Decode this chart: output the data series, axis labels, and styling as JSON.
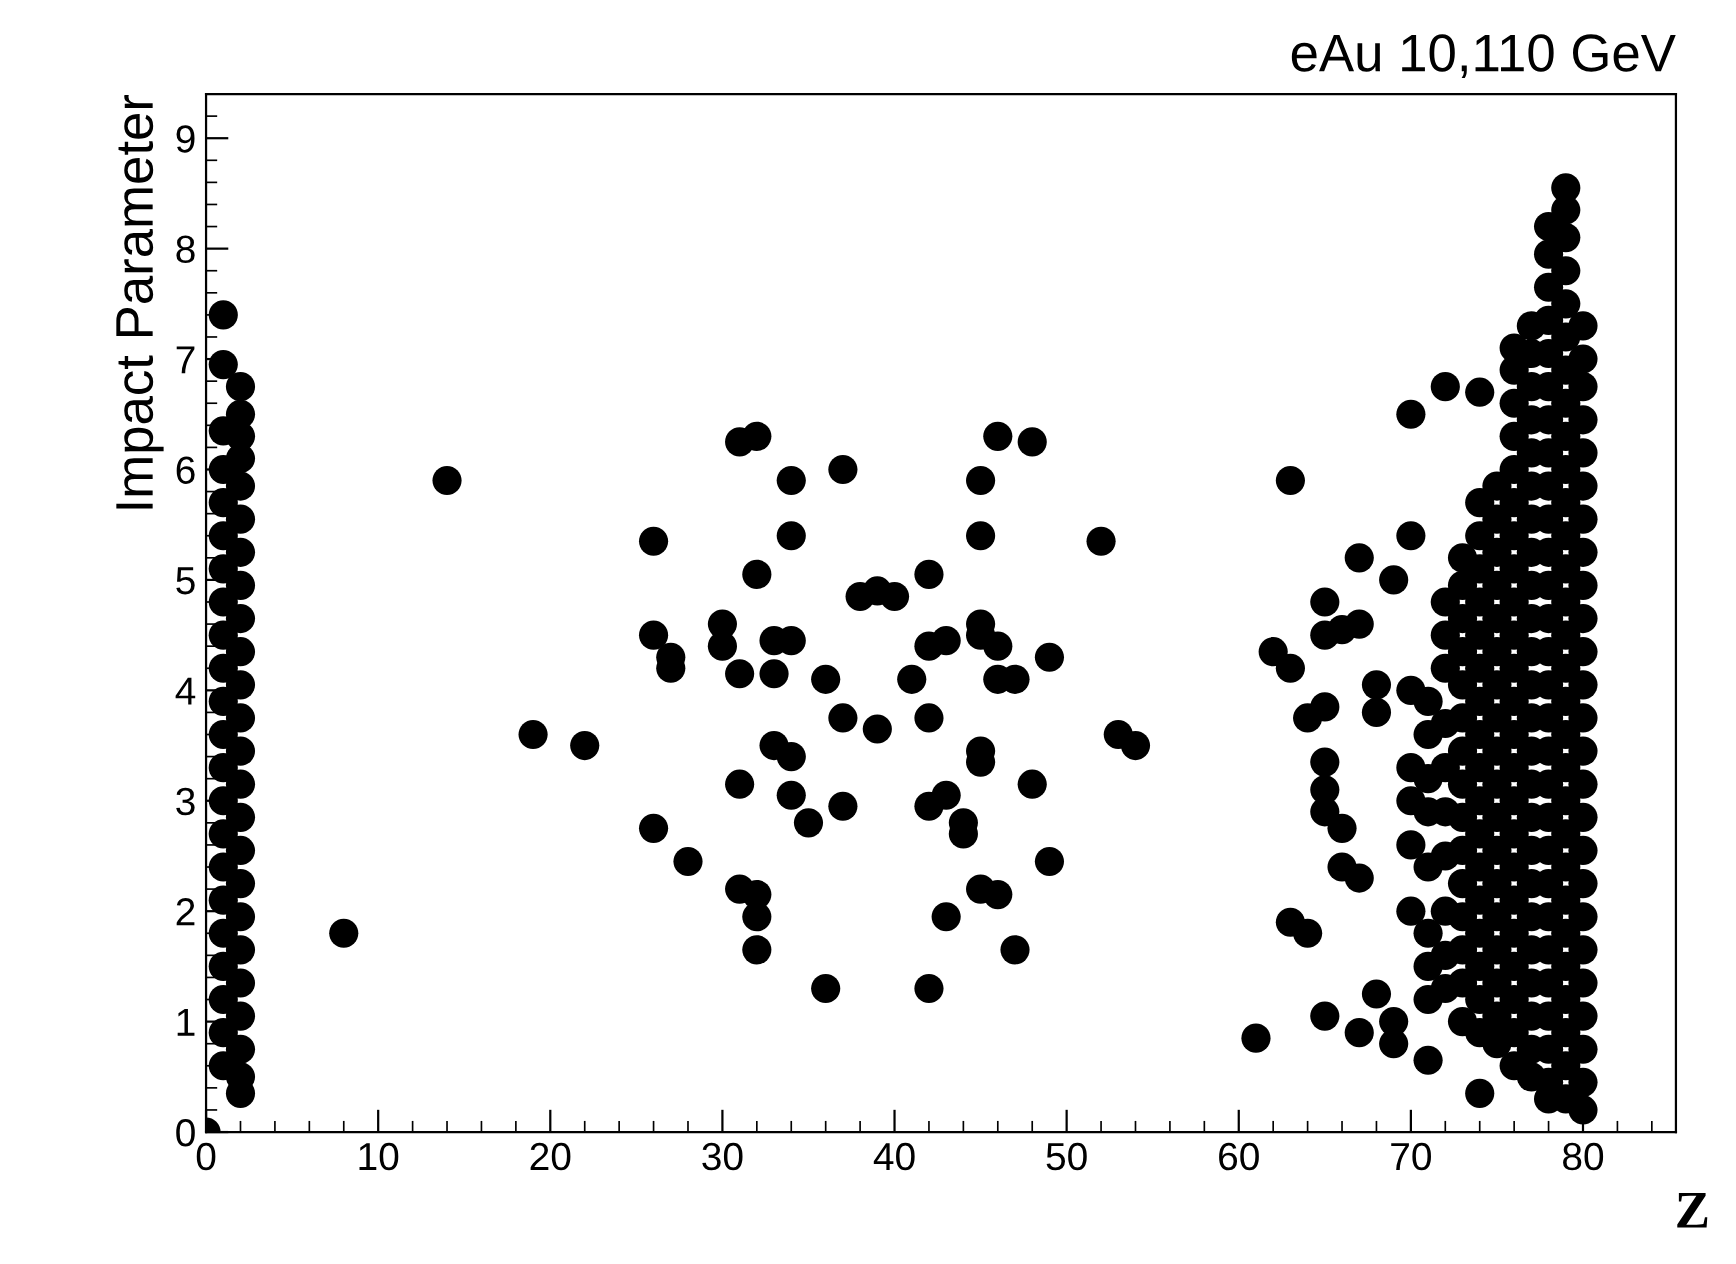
{
  "chart_data": {
    "type": "scatter",
    "title": "eAu 10,110 GeV",
    "xlabel": "Z",
    "ylabel": "Impact Parameter",
    "xlim": [
      0,
      85.4
    ],
    "ylim": [
      0,
      9.4
    ],
    "xticks": [
      0,
      10,
      20,
      30,
      40,
      50,
      60,
      70,
      80
    ],
    "yticks": [
      0,
      1,
      2,
      3,
      4,
      5,
      6,
      7,
      8,
      9
    ],
    "grid": false,
    "marker": "circle",
    "legend": false,
    "series": [
      {
        "color": "#000000",
        "x": [
          0
        ],
        "values": [
          0
        ]
      },
      {
        "color": "#000000",
        "x": [
          1,
          1,
          1,
          1,
          1,
          1,
          1,
          1,
          1,
          1,
          1,
          1,
          1,
          1,
          1,
          1,
          1,
          1,
          1,
          1,
          1,
          1
        ],
        "values": [
          0.6,
          0.9,
          1.2,
          1.5,
          1.8,
          2.1,
          2.4,
          2.7,
          3.0,
          3.3,
          3.6,
          3.9,
          4.2,
          4.5,
          4.8,
          5.1,
          5.4,
          5.7,
          6.0,
          6.35,
          6.95,
          7.4
        ]
      },
      {
        "color": "#000000",
        "x": [
          2,
          2,
          2,
          2,
          2,
          2,
          2,
          2,
          2,
          2,
          2,
          2,
          2,
          2,
          2,
          2,
          2,
          2,
          2,
          2,
          2,
          2,
          2,
          2
        ],
        "values": [
          0.35,
          0.5,
          0.75,
          1.05,
          1.35,
          1.65,
          1.95,
          2.25,
          2.55,
          2.85,
          3.15,
          3.45,
          3.75,
          4.05,
          4.35,
          4.65,
          4.95,
          5.25,
          5.55,
          5.85,
          6.1,
          6.3,
          6.5,
          6.75
        ]
      },
      {
        "color": "#000000",
        "x": [
          8,
          14,
          19,
          22,
          26,
          26,
          27,
          27,
          26,
          28,
          30,
          30,
          31,
          31,
          31,
          31,
          32,
          32,
          32,
          32,
          32,
          33,
          33,
          33,
          34,
          34,
          34,
          34,
          34,
          35,
          36,
          36,
          37,
          37,
          37,
          38,
          39,
          40,
          39,
          41,
          42,
          42,
          42,
          42,
          42,
          43,
          43,
          43,
          44,
          44,
          45,
          45,
          45,
          45,
          45,
          45,
          45,
          46,
          46,
          46,
          46,
          47,
          47,
          48,
          48,
          49,
          49,
          52,
          53,
          54
        ],
        "values": [
          1.8,
          5.9,
          3.6,
          3.5,
          5.35,
          4.5,
          4.3,
          4.2,
          2.75,
          2.45,
          4.6,
          4.4,
          4.15,
          3.15,
          2.2,
          6.25,
          6.3,
          5.05,
          2.15,
          1.95,
          1.65,
          4.45,
          4.15,
          3.5,
          4.45,
          5.9,
          5.4,
          3.4,
          3.05,
          2.8,
          4.1,
          1.3,
          6.0,
          3.75,
          2.95,
          4.85,
          4.9,
          4.85,
          3.65,
          4.1,
          5.05,
          4.4,
          3.75,
          2.95,
          1.3,
          4.45,
          3.05,
          1.95,
          2.8,
          2.7,
          5.9,
          5.4,
          4.6,
          4.5,
          3.45,
          3.35,
          2.2,
          6.3,
          4.4,
          4.1,
          2.15,
          4.1,
          1.65,
          6.25,
          3.15,
          4.3,
          2.45,
          5.35,
          3.6,
          3.5
        ]
      },
      {
        "color": "#000000",
        "x": [
          61,
          62,
          63,
          63,
          63,
          64,
          64,
          65,
          65,
          65,
          66,
          65,
          65,
          65,
          65,
          66,
          66,
          67,
          67,
          67,
          67,
          68,
          68,
          68,
          69,
          69,
          69,
          70,
          70,
          70,
          71,
          71,
          72,
          74,
          74
        ],
        "values": [
          0.85,
          4.35,
          4.2,
          5.9,
          1.9,
          1.8,
          3.75,
          3.85,
          4.5,
          4.8,
          4.55,
          3.35,
          3.1,
          2.9,
          1.05,
          2.75,
          2.4,
          5.2,
          4.6,
          2.3,
          0.9,
          1.25,
          3.8,
          4.05,
          1.0,
          0.8,
          5.0,
          5.4,
          6.5,
          2.0,
          0.65,
          1.5,
          6.75,
          6.7,
          0.35
        ]
      },
      {
        "color": "#000000",
        "x": [
          70,
          70,
          70,
          70,
          71,
          71,
          71,
          71,
          71,
          71,
          71,
          72,
          72,
          72,
          72,
          72,
          72,
          72,
          72,
          72,
          72
        ],
        "values": [
          2.6,
          3.0,
          3.3,
          4.0,
          1.2,
          1.8,
          2.4,
          2.9,
          3.2,
          3.6,
          3.9,
          1.3,
          1.6,
          2.0,
          2.5,
          2.9,
          3.3,
          3.7,
          4.2,
          4.5,
          4.8
        ]
      },
      {
        "color": "#000000",
        "x": [
          73,
          73,
          73,
          73,
          73,
          73,
          73,
          73,
          73,
          73,
          73,
          73,
          73,
          73,
          73
        ],
        "values": [
          1.0,
          1.35,
          1.65,
          1.95,
          2.25,
          2.55,
          2.85,
          3.15,
          3.45,
          3.75,
          4.05,
          4.35,
          4.65,
          4.95,
          5.2
        ]
      },
      {
        "color": "#000000",
        "x": [
          74,
          74,
          74,
          74,
          74,
          74,
          74,
          74,
          74,
          74,
          74,
          74,
          74,
          74,
          74,
          74,
          74
        ],
        "values": [
          0.9,
          1.2,
          1.5,
          1.8,
          2.1,
          2.4,
          2.7,
          3.0,
          3.3,
          3.6,
          3.9,
          4.2,
          4.5,
          4.8,
          5.1,
          5.4,
          5.7
        ]
      },
      {
        "color": "#000000",
        "x": [
          75,
          75,
          75,
          75,
          75,
          75,
          75,
          75,
          75,
          75,
          75,
          75,
          75,
          75,
          75,
          75,
          75,
          75
        ],
        "values": [
          0.8,
          1.05,
          1.35,
          1.65,
          1.95,
          2.25,
          2.55,
          2.85,
          3.15,
          3.45,
          3.75,
          4.05,
          4.35,
          4.65,
          4.95,
          5.25,
          5.55,
          5.85
        ]
      },
      {
        "color": "#000000",
        "x": [
          76,
          76,
          76,
          76,
          76,
          76,
          76,
          76,
          76,
          76,
          76,
          76,
          76,
          76,
          76,
          76,
          76,
          76,
          76,
          76,
          76,
          76,
          76
        ],
        "values": [
          0.6,
          0.9,
          1.2,
          1.5,
          1.8,
          2.1,
          2.4,
          2.7,
          3.0,
          3.3,
          3.6,
          3.9,
          4.2,
          4.5,
          4.8,
          5.1,
          5.4,
          5.7,
          6.0,
          6.3,
          6.6,
          6.9,
          7.1
        ]
      },
      {
        "color": "#000000",
        "x": [
          77,
          77,
          77,
          77,
          77,
          77,
          77,
          77,
          77,
          77,
          77,
          77,
          77,
          77,
          77,
          77,
          77,
          77,
          77,
          77,
          77,
          77,
          77,
          77
        ],
        "values": [
          0.5,
          0.75,
          1.05,
          1.35,
          1.65,
          1.95,
          2.25,
          2.55,
          2.85,
          3.15,
          3.45,
          3.75,
          4.05,
          4.35,
          4.65,
          4.95,
          5.25,
          5.55,
          5.85,
          6.15,
          6.45,
          6.75,
          7.05,
          7.3
        ]
      },
      {
        "color": "#000000",
        "x": [
          78,
          78,
          78,
          78,
          78,
          78,
          78,
          78,
          78,
          78,
          78,
          78,
          78,
          78,
          78,
          78,
          78,
          78,
          78,
          78,
          78,
          78,
          78,
          78,
          78,
          78,
          78,
          78
        ],
        "values": [
          0.3,
          0.45,
          0.75,
          1.05,
          1.35,
          1.65,
          1.95,
          2.25,
          2.55,
          2.85,
          3.15,
          3.45,
          3.75,
          4.05,
          4.35,
          4.65,
          4.95,
          5.25,
          5.55,
          5.85,
          6.15,
          6.45,
          6.75,
          7.05,
          7.35,
          7.65,
          7.95,
          8.2
        ]
      },
      {
        "color": "#000000",
        "x": [
          79,
          79,
          79,
          79,
          79,
          79,
          79,
          79,
          79,
          79,
          79,
          79,
          79,
          79,
          79,
          79,
          79,
          79,
          79,
          79,
          79,
          79,
          79,
          79,
          79,
          79,
          79,
          79,
          79
        ],
        "values": [
          0.3,
          0.6,
          0.9,
          1.2,
          1.5,
          1.8,
          2.1,
          2.4,
          2.7,
          3.0,
          3.3,
          3.6,
          3.9,
          4.2,
          4.5,
          4.8,
          5.1,
          5.4,
          5.7,
          6.0,
          6.3,
          6.6,
          6.9,
          7.2,
          7.5,
          7.8,
          8.1,
          8.35,
          8.55
        ]
      },
      {
        "color": "#000000",
        "x": [
          80,
          80,
          80,
          80,
          80,
          80,
          80,
          80,
          80,
          80,
          80,
          80,
          80,
          80,
          80,
          80,
          80,
          80,
          80,
          80,
          80,
          80,
          80,
          80,
          80
        ],
        "values": [
          0.2,
          0.45,
          0.75,
          1.05,
          1.35,
          1.65,
          1.95,
          2.25,
          2.55,
          2.85,
          3.15,
          3.45,
          3.75,
          4.05,
          4.35,
          4.65,
          4.95,
          5.25,
          5.55,
          5.85,
          6.15,
          6.45,
          6.75,
          7.0,
          7.3
        ]
      }
    ]
  }
}
